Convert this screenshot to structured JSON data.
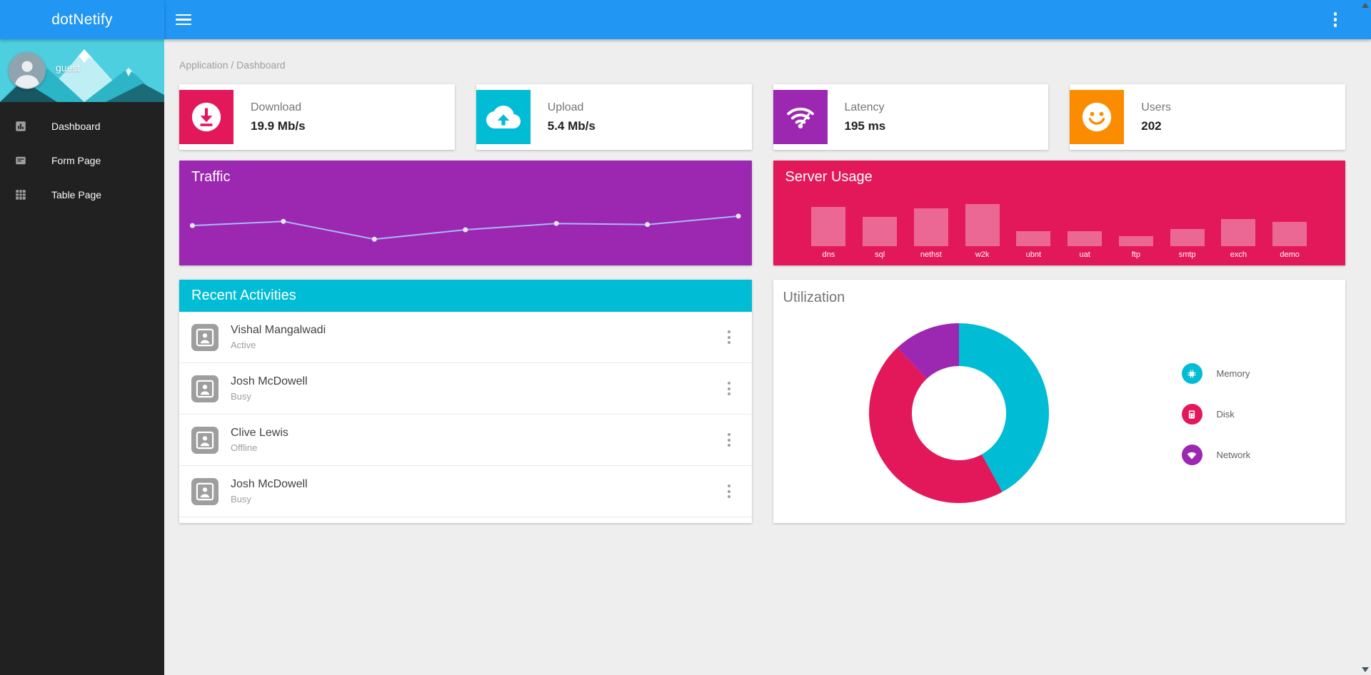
{
  "brand": {
    "name": "dotNetify",
    "color": "#2196f3"
  },
  "sidebar": {
    "user": "guest",
    "items": [
      {
        "label": "Dashboard",
        "icon": "bar-chart-icon"
      },
      {
        "label": "Form Page",
        "icon": "form-card-icon"
      },
      {
        "label": "Table Page",
        "icon": "grid-icon"
      }
    ]
  },
  "appbar": {
    "icons": {
      "left": "hamburger-menu-icon",
      "right": "more-vertical-icon"
    }
  },
  "breadcrumb": "Application / Dashboard",
  "stats": {
    "cards": [
      {
        "label": "Download",
        "value": "19.9 Mb/s",
        "color": "#e2185b",
        "icon": "download-circle-icon"
      },
      {
        "label": "Upload",
        "value": "5.4 Mb/s",
        "color": "#00bcd4",
        "icon": "cloud-upload-icon"
      },
      {
        "label": "Latency",
        "value": "195 ms",
        "color": "#9c27b0",
        "icon": "wifi-icon"
      },
      {
        "label": "Users",
        "value": "202",
        "color": "#fb8c00",
        "icon": "smiley-face-icon"
      }
    ]
  },
  "traffic": {
    "title": "Traffic",
    "panel_color": "#9c27b0",
    "chart_data": {
      "type": "line",
      "x": [
        1,
        2,
        3,
        4,
        5,
        6,
        7
      ],
      "values": [
        38,
        42,
        25,
        34,
        40,
        39,
        47
      ],
      "ylim": [
        0,
        100
      ],
      "line_color": "#a9b9f5",
      "point_color": "#e3e9fb",
      "grid": false,
      "axis_labels_visible": false
    }
  },
  "server_usage": {
    "title": "Server Usage",
    "panel_color": "#e2185b",
    "chart_data": {
      "type": "bar",
      "categories": [
        "dns",
        "sql",
        "nethst",
        "w2k",
        "ubnt",
        "uat",
        "ftp",
        "smtp",
        "exch",
        "demo"
      ],
      "values": [
        94,
        69,
        90,
        100,
        35,
        35,
        23,
        40,
        65,
        58
      ],
      "ylim": [
        0,
        100
      ],
      "bar_color": "rgba(255,255,255,0.35)",
      "axis_labels_visible": false
    }
  },
  "recent_activities": {
    "title": "Recent Activities",
    "header_color": "#00bcd4",
    "items": [
      {
        "name": "Vishal Mangalwadi",
        "status": "Active"
      },
      {
        "name": "Josh McDowell",
        "status": "Busy"
      },
      {
        "name": "Clive Lewis",
        "status": "Offline"
      },
      {
        "name": "Josh McDowell",
        "status": "Busy"
      }
    ]
  },
  "utilization": {
    "title": "Utilization",
    "chart_data": {
      "type": "pie",
      "labels": [
        "Memory",
        "Disk",
        "Network"
      ],
      "values": [
        42,
        46,
        12
      ],
      "colors": [
        "#00bcd4",
        "#e2185b",
        "#9c27b0"
      ],
      "donut": true,
      "legend_position": "right"
    }
  },
  "icons_map": {
    "memory": "chip-icon",
    "disk": "storage-icon",
    "network": "wifi-dome-icon",
    "activity_avatar": "picture-placeholder-icon"
  }
}
